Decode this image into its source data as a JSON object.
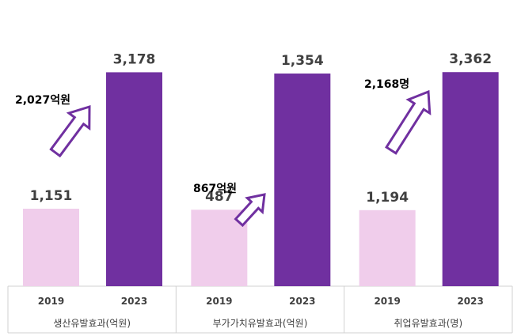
{
  "colors": {
    "bar_2019": "#f0cdeb",
    "bar_2023": "#7030a0",
    "arrow_stroke": "#7030a0",
    "arrow_fill": "#ffffff",
    "text": "#404040"
  },
  "chart_data": {
    "type": "bar",
    "title": "",
    "xlabel": "",
    "ylabel": "",
    "series_names": [
      "2019",
      "2023"
    ],
    "groups": [
      {
        "label": "생산유발효과(억원)",
        "values": [
          1151,
          3178
        ],
        "value_labels": [
          "1,151",
          "3,178"
        ],
        "increase": "2,027억원",
        "ymax": 3500
      },
      {
        "label": "부가가치유발효과(억원)",
        "values": [
          487,
          1354
        ],
        "value_labels": [
          "487",
          "1,354"
        ],
        "increase": "867억원",
        "ymax": 1500
      },
      {
        "label": "취업유발효과(명)",
        "values": [
          1194,
          3362
        ],
        "value_labels": [
          "1,194",
          "3,362"
        ],
        "increase": "2,168명",
        "ymax": 3700
      }
    ],
    "grid": false,
    "legend": "none"
  }
}
